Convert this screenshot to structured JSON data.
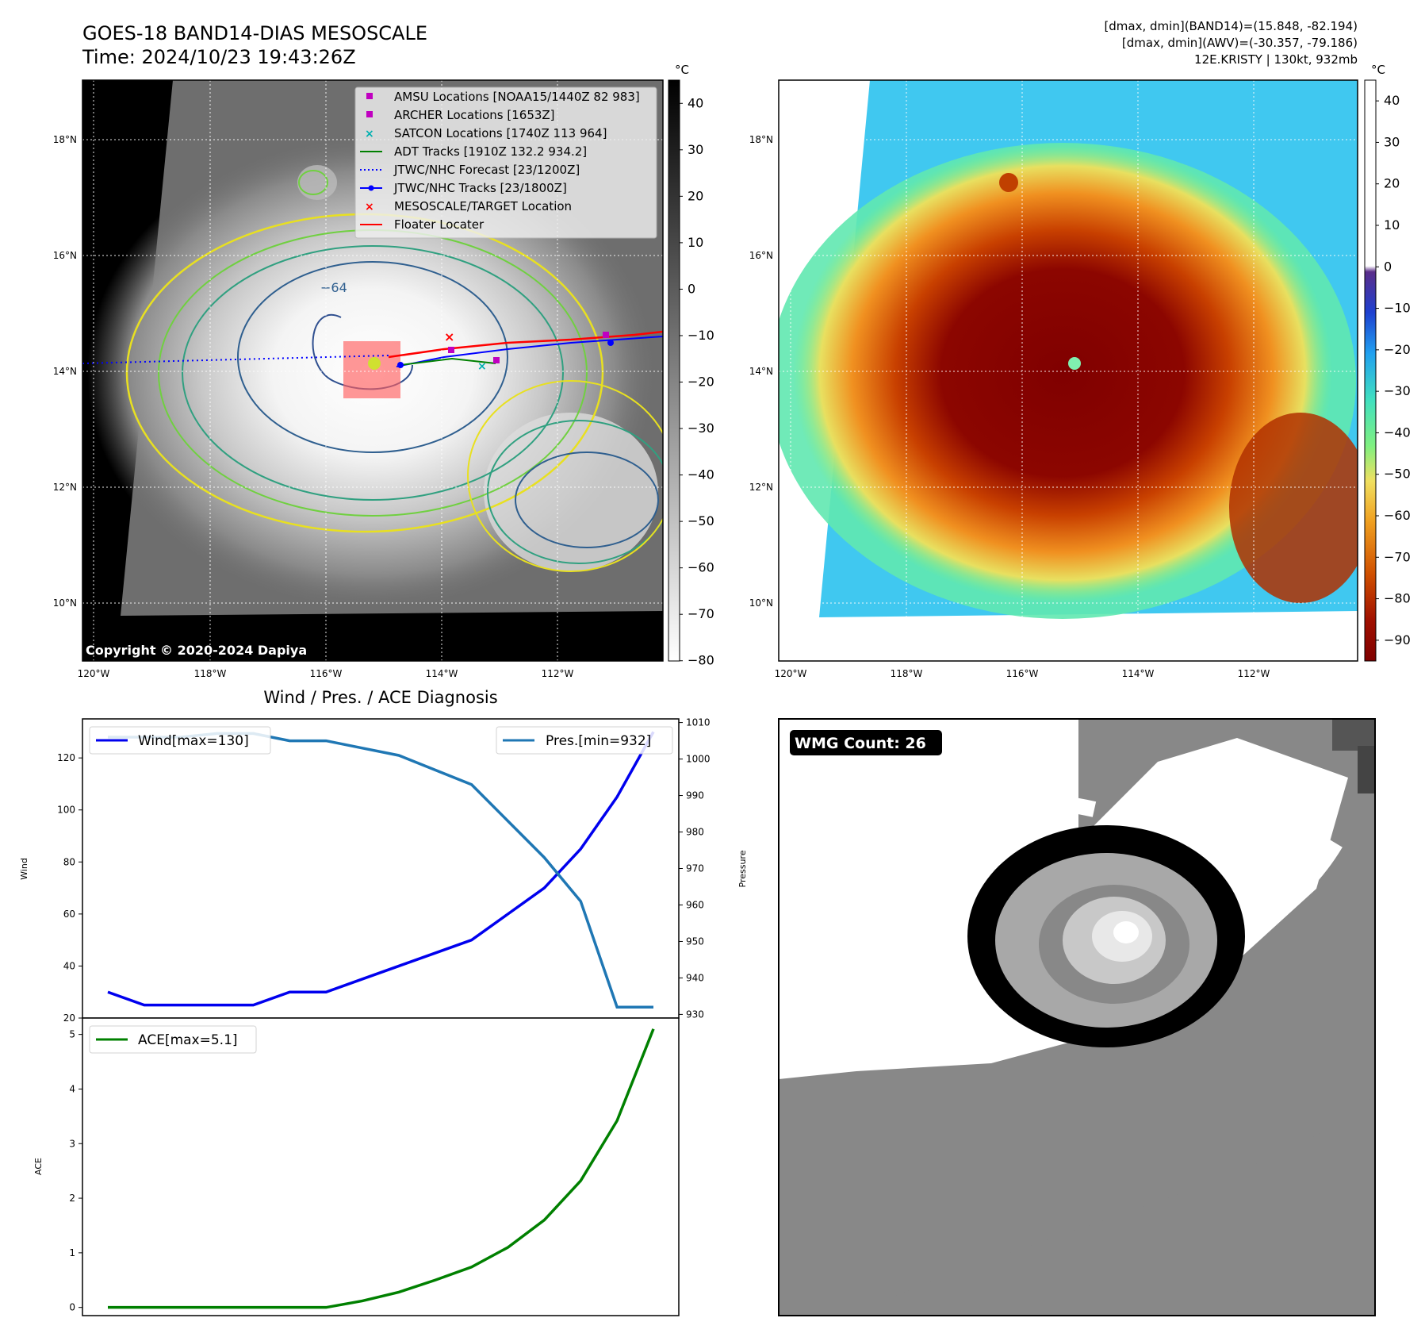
{
  "header": {
    "title_line1": "GOES-18 BAND14-DIAS MESOSCALE",
    "title_line2": "Time: 2024/10/23 19:43:26Z",
    "info_line1": "[dmax, dmin](BAND14)=(15.848, -82.194)",
    "info_line2": "[dmax, dmin](AWV)=(-30.357, -79.186)",
    "info_line3": "12E.KRISTY | 130kt, 932mb"
  },
  "map": {
    "lat_labels": [
      "18°N",
      "16°N",
      "14°N",
      "12°N",
      "10°N"
    ],
    "lon_labels": [
      "120°W",
      "118°W",
      "116°W",
      "114°W",
      "112°W"
    ],
    "copyright": "Copyright © 2020-2024 Dapiya",
    "contour_label": "−64",
    "contour_label2": "−64",
    "legend": [
      {
        "label": "AMSU Locations [NOAA15/1440Z 82 983]",
        "color": "#c000c0",
        "marker": "square"
      },
      {
        "label": "ARCHER Locations [1653Z]",
        "color": "#c000c0",
        "marker": "square"
      },
      {
        "label": "SATCON Locations [1740Z 113 964]",
        "color": "#00b0b0",
        "marker": "x"
      },
      {
        "label": "ADT Tracks [1910Z 132.2 934.2]",
        "color": "#008000",
        "marker": "line"
      },
      {
        "label": "JTWC/NHC Forecast [23/1200Z]",
        "color": "#0000ff",
        "marker": "dotted"
      },
      {
        "label": "JTWC/NHC Tracks [23/1800Z]",
        "color": "#0000ff",
        "marker": "line-dot"
      },
      {
        "label": "MESOSCALE/TARGET Location",
        "color": "#ff0000",
        "marker": "x"
      },
      {
        "label": "Floater Locater",
        "color": "#ff0000",
        "marker": "line"
      }
    ]
  },
  "colorbar_gray": {
    "unit": "°C",
    "ticks": [
      "40",
      "30",
      "20",
      "10",
      "0",
      "−10",
      "−20",
      "−30",
      "−40",
      "−50",
      "−60",
      "−70",
      "−80"
    ]
  },
  "colorbar_color": {
    "unit": "°C",
    "ticks": [
      "40",
      "30",
      "20",
      "10",
      "0",
      "−10",
      "−20",
      "−30",
      "−40",
      "−50",
      "−60",
      "−70",
      "−80",
      "−90"
    ]
  },
  "wmg": {
    "badge": "WMG Count: 26"
  },
  "colors": {
    "wind": "#0000ee",
    "pressure": "#1f77b4",
    "ace": "#008000"
  },
  "chart_data": [
    {
      "type": "line",
      "title": "Wind / Pres. / ACE Diagnosis",
      "xlabel": "",
      "ylabel": "Wind",
      "ylabel_right": "Pressure",
      "x": [
        0,
        1,
        2,
        3,
        4,
        5,
        6,
        7,
        8,
        9,
        10,
        11,
        12,
        13,
        14,
        15
      ],
      "ylim": [
        20,
        135
      ],
      "yticks": [
        20,
        40,
        60,
        80,
        100,
        120
      ],
      "ylim_right": [
        929,
        1011
      ],
      "yticks_right": [
        930,
        940,
        950,
        960,
        970,
        980,
        990,
        1000,
        1010
      ],
      "series": [
        {
          "name": "Wind[max=130]",
          "axis": "left",
          "values": [
            30,
            25,
            25,
            25,
            25,
            30,
            30,
            35,
            40,
            45,
            50,
            60,
            70,
            85,
            105,
            130
          ]
        },
        {
          "name": "Pres.[min=932]",
          "axis": "right",
          "values": [
            1006,
            1006,
            1006,
            1007,
            1007,
            1005,
            1005,
            1003,
            1001,
            997,
            993,
            983,
            973,
            961,
            932,
            932
          ]
        }
      ],
      "legend": [
        "upper-left",
        "upper-right"
      ]
    },
    {
      "type": "line",
      "title": "",
      "xlabel": "",
      "ylabel": "ACE",
      "x": [
        0,
        1,
        2,
        3,
        4,
        5,
        6,
        7,
        8,
        9,
        10,
        11,
        12,
        13,
        14,
        15
      ],
      "ylim": [
        -0.15,
        5.3
      ],
      "yticks": [
        0,
        1,
        2,
        3,
        4,
        5
      ],
      "series": [
        {
          "name": "ACE[max=5.1]",
          "values": [
            0,
            0,
            0,
            0,
            0,
            0,
            0,
            0.12,
            0.28,
            0.5,
            0.74,
            1.1,
            1.6,
            2.32,
            3.42,
            5.1
          ]
        }
      ],
      "legend": "upper-left"
    }
  ]
}
